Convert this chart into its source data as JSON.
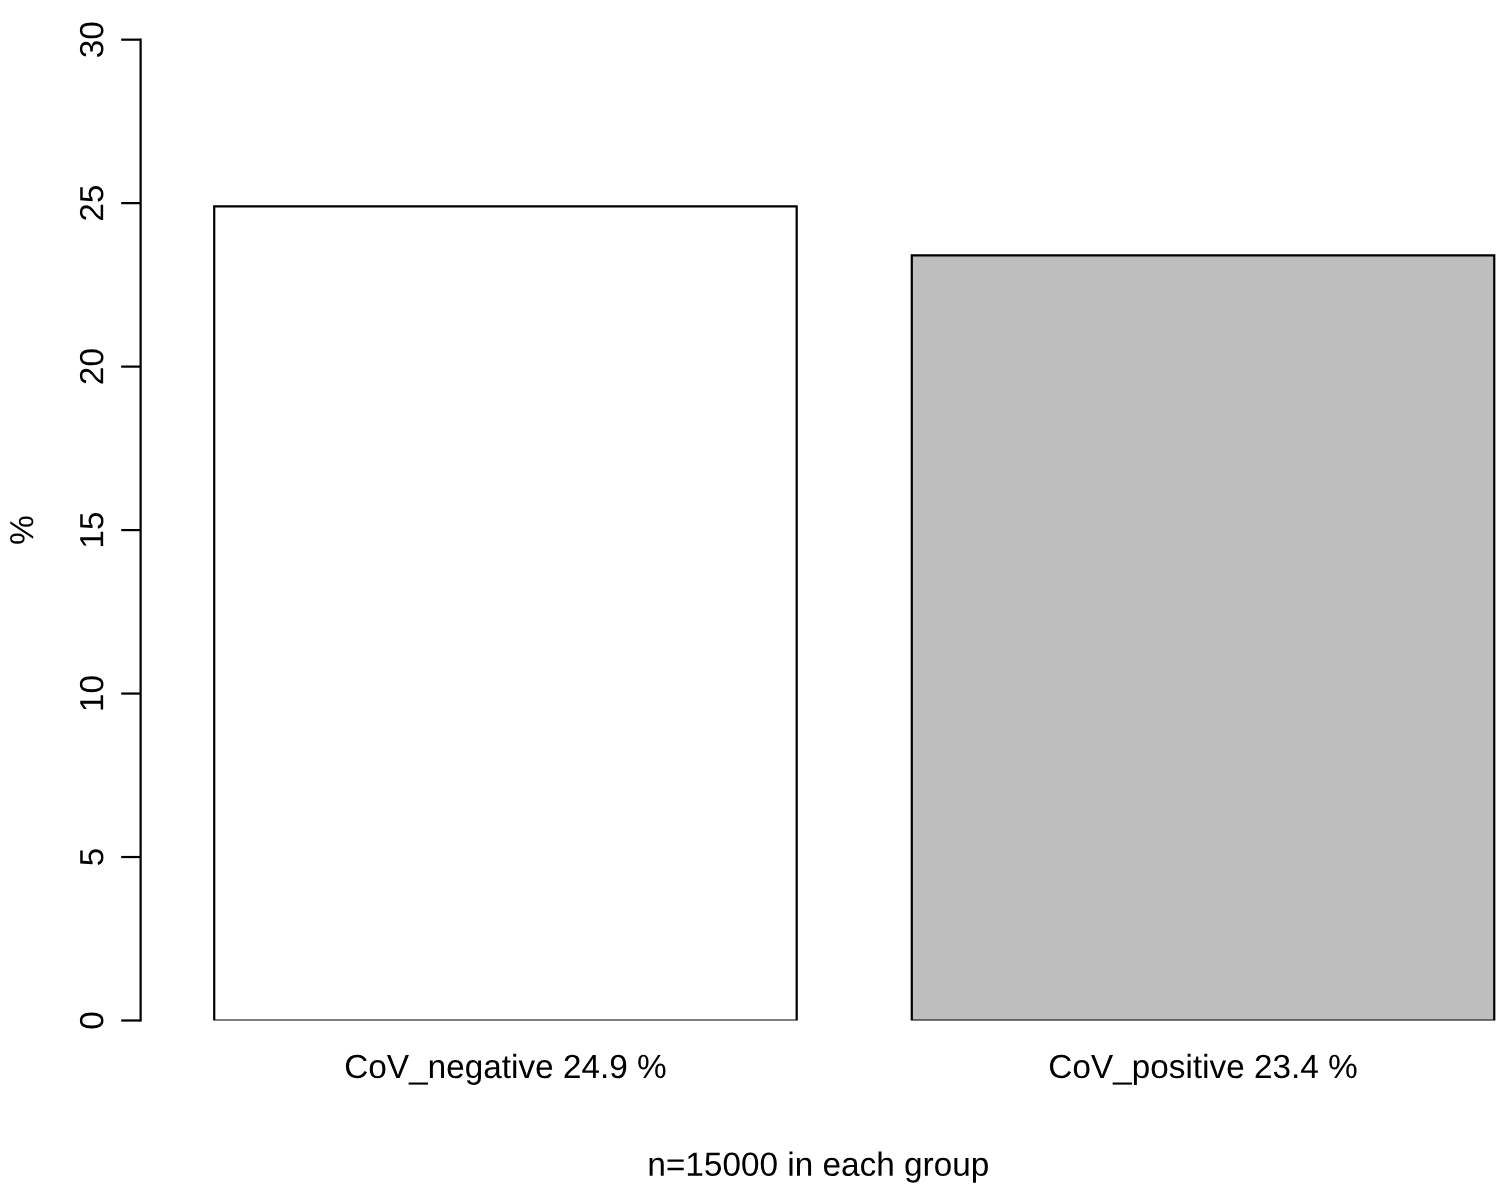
{
  "chart_data": {
    "type": "bar",
    "categories": [
      "CoV_negative 24.9 %",
      "CoV_positive 23.4 %"
    ],
    "values": [
      24.9,
      23.4
    ],
    "colors": [
      "#ffffff",
      "#bebebe"
    ],
    "xlabel": "n=15000 in each group",
    "ylabel": "%",
    "ylim": [
      0,
      30
    ],
    "yticks": [
      0,
      5,
      10,
      15,
      20,
      25,
      30
    ],
    "grid": false,
    "legend": false
  }
}
